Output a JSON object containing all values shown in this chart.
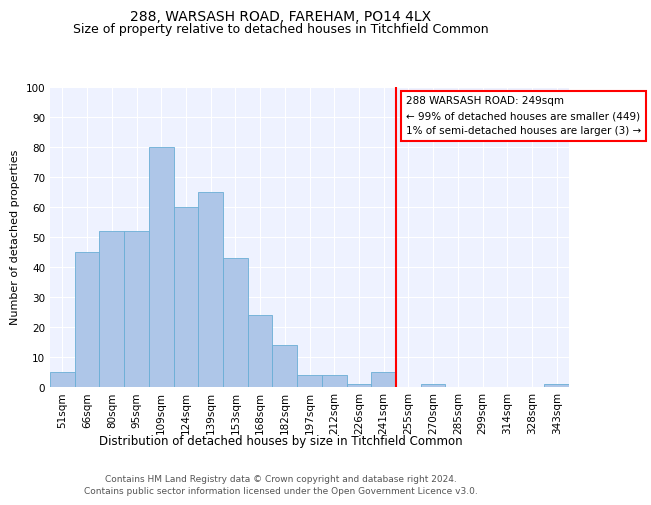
{
  "title1": "288, WARSASH ROAD, FAREHAM, PO14 4LX",
  "title2": "Size of property relative to detached houses in Titchfield Common",
  "xlabel": "Distribution of detached houses by size in Titchfield Common",
  "ylabel": "Number of detached properties",
  "footer1": "Contains HM Land Registry data © Crown copyright and database right 2024.",
  "footer2": "Contains public sector information licensed under the Open Government Licence v3.0.",
  "bin_labels": [
    "51sqm",
    "66sqm",
    "80sqm",
    "95sqm",
    "109sqm",
    "124sqm",
    "139sqm",
    "153sqm",
    "168sqm",
    "182sqm",
    "197sqm",
    "212sqm",
    "226sqm",
    "241sqm",
    "255sqm",
    "270sqm",
    "285sqm",
    "299sqm",
    "314sqm",
    "328sqm",
    "343sqm"
  ],
  "values": [
    5,
    45,
    52,
    52,
    80,
    60,
    65,
    43,
    24,
    14,
    4,
    4,
    1,
    5,
    0,
    1,
    0,
    0,
    0,
    0,
    1
  ],
  "bar_color": "#aec6e8",
  "bar_edge_color": "#6aaed6",
  "vline_x": 13.5,
  "vline_color": "red",
  "annotation_text": "288 WARSASH ROAD: 249sqm\n← 99% of detached houses are smaller (449)\n1% of semi-detached houses are larger (3) →",
  "annotation_box_color": "white",
  "annotation_box_edge": "red",
  "ylim": [
    0,
    100
  ],
  "yticks": [
    0,
    10,
    20,
    30,
    40,
    50,
    60,
    70,
    80,
    90,
    100
  ],
  "bg_color": "#eef2ff",
  "title1_fontsize": 10,
  "title2_fontsize": 9,
  "ylabel_fontsize": 8,
  "xlabel_fontsize": 8.5,
  "footer_fontsize": 6.5,
  "tick_fontsize": 7.5,
  "annot_fontsize": 7.5
}
